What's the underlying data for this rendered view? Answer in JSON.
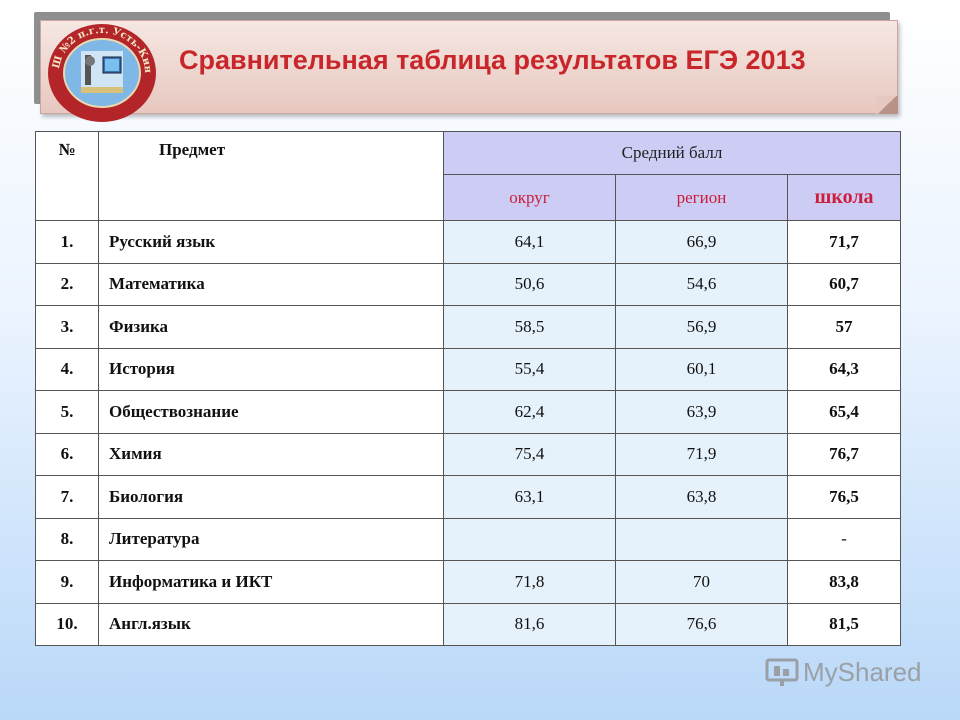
{
  "banner": {
    "title": "Сравнительная таблица результатов ЕГЭ 2013",
    "logo_label": "ГБОУ СОШ №2 п.г.т. Усть-Кинельский"
  },
  "table": {
    "headers": {
      "number": "№",
      "subject": "Предмет",
      "average": "Средний балл",
      "district": "округ",
      "region": "регион",
      "school": "школа"
    },
    "rows": [
      {
        "num": "1.",
        "subject": "Русский язык",
        "district": "64,1",
        "region": "66,9",
        "school": "71,7"
      },
      {
        "num": "2.",
        "subject": "Математика",
        "district": "50,6",
        "region": "54,6",
        "school": "60,7"
      },
      {
        "num": "3.",
        "subject": "Физика",
        "district": "58,5",
        "region": "56,9",
        "school": "57"
      },
      {
        "num": "4.",
        "subject": "История",
        "district": "55,4",
        "region": "60,1",
        "school": "64,3"
      },
      {
        "num": "5.",
        "subject": "Обществознание",
        "district": "62,4",
        "region": "63,9",
        "school": "65,4"
      },
      {
        "num": "6.",
        "subject": "Химия",
        "district": "75,4",
        "region": "71,9",
        "school": "76,7"
      },
      {
        "num": "7.",
        "subject": "Биология",
        "district": "63,1",
        "region": "63,8",
        "school": "76,5"
      },
      {
        "num": "8.",
        "subject": "Литература",
        "district": "",
        "region": "",
        "school": "-"
      },
      {
        "num": "9.",
        "subject": "Информатика и ИКТ",
        "district": "71,8",
        "region": "70",
        "school": "83,8"
      },
      {
        "num": "10.",
        "subject": "Англ.язык",
        "district": "81,6",
        "region": "76,6",
        "school": "81,5"
      }
    ]
  },
  "watermark": {
    "text": "MyShared"
  }
}
